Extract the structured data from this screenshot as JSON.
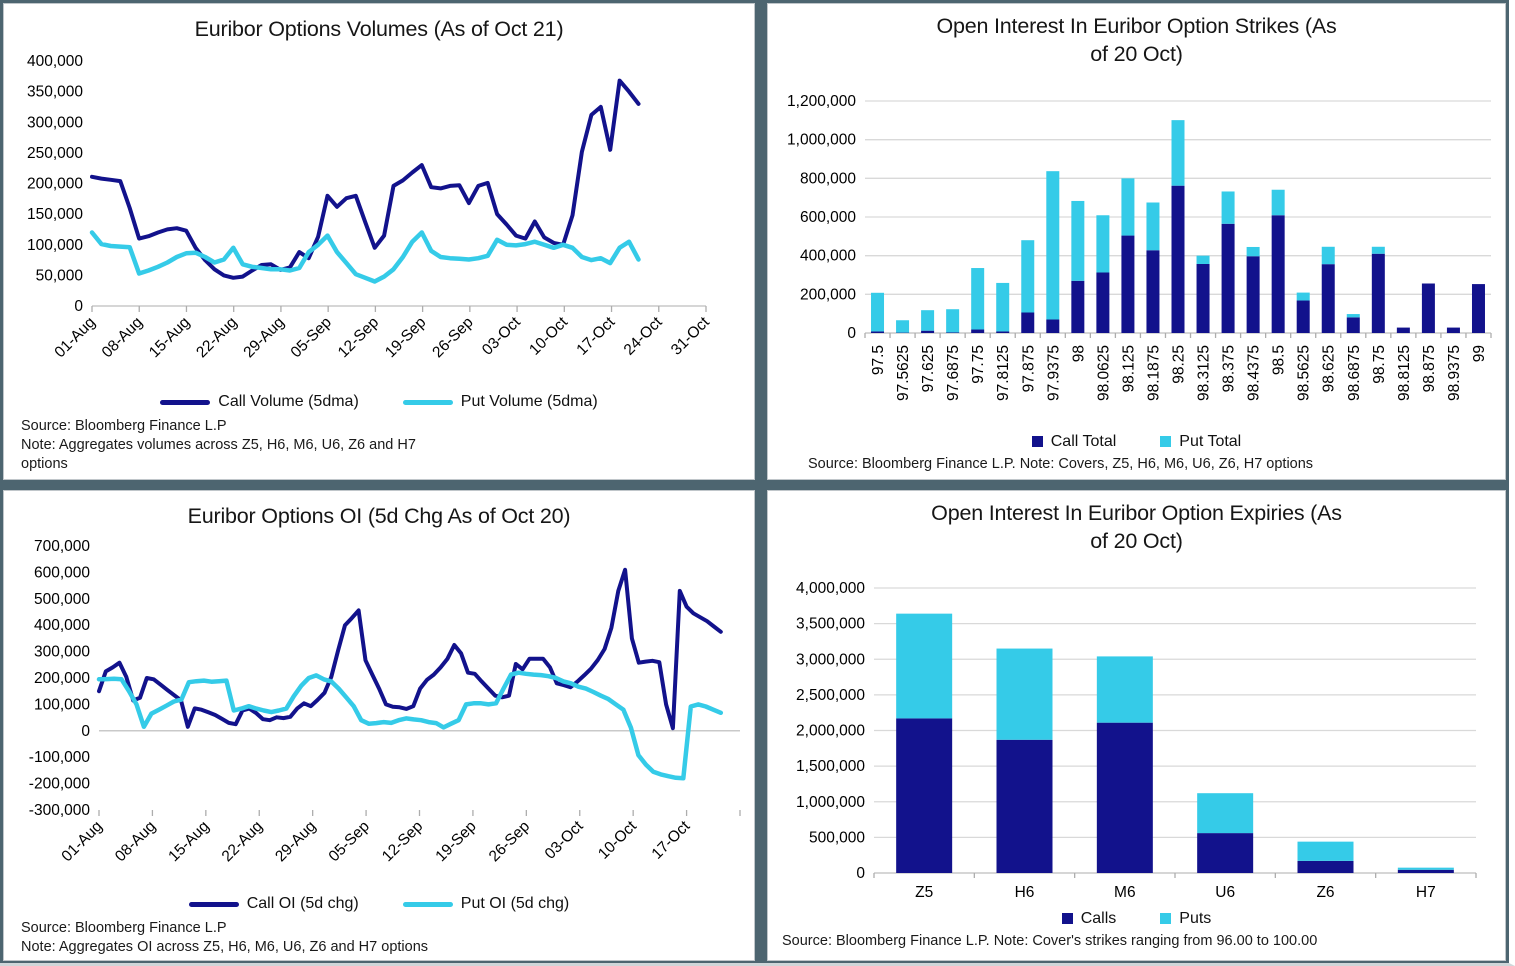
{
  "background_color": "#4D6570",
  "colors": {
    "navy": "#12128C",
    "cyan": "#35CBE8",
    "gridline": "#D9D9D9",
    "axis": "#C9C9C9",
    "tick": "#ADADAD"
  },
  "panels": [
    {
      "title": "Euribor Options Volumes (As of Oct 21)",
      "title_line1": "Euribor Options Volumes (As of Oct 21)",
      "title_line2": "",
      "legend": [
        {
          "label": "Call Volume (5dma)",
          "color": "#12128C",
          "marker": "line"
        },
        {
          "label": "Put Volume (5dma)",
          "color": "#35CBE8",
          "marker": "line"
        }
      ],
      "notes": [
        "Source: Bloomberg Finance L.P",
        "Note: Aggregates volumes across Z5, H6, M6, U6, Z6 and H7",
        "options"
      ]
    },
    {
      "title": "Open Interest In Euribor Option Strikes (As of 20 Oct)",
      "title_line1": "Open Interest In Euribor Option Strikes (As",
      "title_line2": "of 20 Oct)",
      "legend": [
        {
          "label": "Call Total",
          "color": "#12128C",
          "marker": "square"
        },
        {
          "label": "Put Total",
          "color": "#35CBE8",
          "marker": "square"
        }
      ],
      "notes": [
        "Source: Bloomberg Finance L.P. Note: Covers, Z5, H6, M6, U6, Z6, H7 options"
      ]
    },
    {
      "title": "Euribor Options OI (5d Chg As of Oct 20)",
      "title_line1": "Euribor Options OI (5d Chg As of Oct 20)",
      "title_line2": "",
      "legend": [
        {
          "label": "Call OI (5d chg)",
          "color": "#12128C",
          "marker": "line"
        },
        {
          "label": "Put OI (5d chg)",
          "color": "#35CBE8",
          "marker": "line"
        }
      ],
      "notes": [
        "Source: Bloomberg Finance L.P",
        "Note: Aggregates OI across Z5, H6, M6, U6, Z6 and H7 options"
      ]
    },
    {
      "title": "Open Interest In Euribor Option Expiries (As of 20 Oct)",
      "title_line1": "Open Interest In Euribor Option Expiries (As",
      "title_line2": "of 20 Oct)",
      "legend": [
        {
          "label": "Calls",
          "color": "#12128C",
          "marker": "square"
        },
        {
          "label": "Puts",
          "color": "#35CBE8",
          "marker": "square"
        }
      ],
      "notes": [
        "Source: Bloomberg Finance L.P. Note: Cover's strikes ranging from 96.00 to 100.00"
      ]
    }
  ],
  "chart_data": [
    {
      "type": "line",
      "title": "Euribor Options Volumes (As of Oct 21)",
      "x_labels": [
        "01-Aug",
        "08-Aug",
        "15-Aug",
        "22-Aug",
        "29-Aug",
        "05-Sep",
        "12-Sep",
        "19-Sep",
        "26-Sep",
        "03-Oct",
        "10-Oct",
        "17-Oct",
        "24-Oct",
        "31-Oct"
      ],
      "x_slots": 13,
      "data_fraction": 0.89,
      "ylim": [
        0,
        400000
      ],
      "ystep": 50000,
      "grid": false,
      "legend_position": "bottom",
      "series": [
        {
          "name": "Call Volume (5dma)",
          "color": "#12128C",
          "width": 4,
          "values": [
            211000,
            208000,
            206000,
            204000,
            160000,
            110000,
            114000,
            120000,
            125000,
            127000,
            123000,
            95000,
            75000,
            60000,
            50000,
            46000,
            48000,
            58000,
            67000,
            68000,
            59000,
            63000,
            88000,
            78000,
            113000,
            180000,
            162000,
            176000,
            180000,
            137000,
            95000,
            115000,
            196000,
            205000,
            218000,
            230000,
            194000,
            192000,
            196000,
            197000,
            168000,
            196000,
            201000,
            150000,
            133000,
            115000,
            110000,
            138000,
            112000,
            103000,
            100000,
            148000,
            252000,
            312000,
            325000,
            255000,
            368000,
            350000,
            330000
          ]
        },
        {
          "name": "Put Volume (5dma)",
          "color": "#35CBE8",
          "width": 4.5,
          "values": [
            120000,
            101000,
            98000,
            97000,
            96000,
            53000,
            58000,
            64000,
            71000,
            80000,
            86000,
            87000,
            80000,
            71000,
            76000,
            95000,
            68000,
            64000,
            62000,
            60000,
            60000,
            58000,
            62000,
            88000,
            100000,
            115000,
            88000,
            70000,
            52000,
            46000,
            40000,
            48000,
            60000,
            80000,
            105000,
            120000,
            90000,
            80000,
            78000,
            77000,
            76000,
            78000,
            82000,
            108000,
            100000,
            99000,
            101000,
            105000,
            100000,
            95000,
            100000,
            95000,
            80000,
            75000,
            78000,
            70000,
            95000,
            105000,
            76000
          ]
        }
      ]
    },
    {
      "type": "stacked_bar",
      "title": "Open Interest In Euribor Option Strikes (As of 20 Oct)",
      "categories": [
        "97.5",
        "97.5625",
        "97.625",
        "97.6875",
        "97.75",
        "97.8125",
        "97.875",
        "97.9375",
        "98",
        "98.0625",
        "98.125",
        "98.1875",
        "98.25",
        "98.3125",
        "98.375",
        "98.4375",
        "98.5",
        "98.5625",
        "98.625",
        "98.6875",
        "98.75",
        "98.8125",
        "98.875",
        "98.9375",
        "99"
      ],
      "ylim": [
        0,
        1200000
      ],
      "ystep": 200000,
      "grid": true,
      "x_label_rotation": -90,
      "legend_position": "bottom",
      "series": [
        {
          "name": "Call Total",
          "color": "#12128C",
          "values": [
            8000,
            2000,
            12000,
            3000,
            18000,
            8000,
            106000,
            70000,
            270000,
            313000,
            504000,
            428000,
            762000,
            357000,
            565000,
            397000,
            609000,
            168000,
            356000,
            81000,
            410000,
            28000,
            256000,
            28000,
            253000
          ]
        },
        {
          "name": "Put Total",
          "color": "#35CBE8",
          "values": [
            200000,
            64000,
            106000,
            120000,
            318000,
            251000,
            374000,
            767000,
            413000,
            296000,
            296000,
            247000,
            339000,
            43000,
            167000,
            48000,
            132000,
            41000,
            90000,
            17000,
            36000,
            0,
            0,
            0,
            0
          ]
        }
      ]
    },
    {
      "type": "line",
      "title": "Euribor Options OI (5d Chg As of Oct 20)",
      "x_labels": [
        "01-Aug",
        "08-Aug",
        "15-Aug",
        "22-Aug",
        "29-Aug",
        "05-Sep",
        "12-Sep",
        "19-Sep",
        "26-Sep",
        "03-Oct",
        "10-Oct",
        "17-Oct"
      ],
      "x_slots": 12,
      "data_fraction": 0.97,
      "ylim": [
        -300000,
        700000
      ],
      "ystep": 100000,
      "grid": false,
      "legend_position": "bottom",
      "series": [
        {
          "name": "Call OI (5d chg)",
          "color": "#12128C",
          "width": 4,
          "values": [
            150000,
            225000,
            240000,
            258000,
            204000,
            115000,
            125000,
            200000,
            195000,
            175000,
            155000,
            135000,
            115000,
            15000,
            85000,
            80000,
            70000,
            60000,
            45000,
            30000,
            25000,
            77000,
            84000,
            67000,
            44000,
            40000,
            51000,
            48000,
            53000,
            84000,
            104000,
            93000,
            117000,
            144000,
            204000,
            304000,
            400000,
            427000,
            456000,
            267000,
            213000,
            160000,
            100000,
            91000,
            89000,
            83000,
            93000,
            160000,
            193000,
            213000,
            240000,
            273000,
            325000,
            293000,
            220000,
            216000,
            187000,
            160000,
            133000,
            127000,
            133000,
            253000,
            233000,
            273000,
            273000,
            273000,
            240000,
            180000,
            173000,
            165000,
            186000,
            210000,
            235000,
            268000,
            310000,
            390000,
            530000,
            610000,
            350000,
            258000,
            262000,
            265000,
            260000,
            100000,
            10000,
            530000,
            470000,
            445000,
            430000,
            415000,
            395000,
            375000
          ]
        },
        {
          "name": "Put OI (5d chg)",
          "color": "#35CBE8",
          "width": 4.5,
          "values": [
            195000,
            196000,
            197000,
            195000,
            150000,
            100000,
            15000,
            65000,
            80000,
            95000,
            111000,
            118000,
            184000,
            188000,
            190000,
            186000,
            188000,
            190000,
            77000,
            84000,
            93000,
            84000,
            77000,
            71000,
            77000,
            84000,
            131000,
            171000,
            200000,
            210000,
            195000,
            187000,
            160000,
            127000,
            93000,
            40000,
            27000,
            29000,
            33000,
            30000,
            40000,
            47000,
            43000,
            40000,
            33000,
            29000,
            13000,
            27000,
            40000,
            100000,
            104000,
            104000,
            100000,
            104000,
            160000,
            213000,
            220000,
            216000,
            213000,
            211000,
            207000,
            200000,
            187000,
            180000,
            167000,
            160000,
            147000,
            133000,
            120000,
            100000,
            80000,
            12000,
            -92000,
            -128000,
            -155000,
            -165000,
            -172000,
            -178000,
            -180000,
            92000,
            100000,
            92000,
            80000,
            68000
          ]
        }
      ]
    },
    {
      "type": "stacked_bar",
      "title": "Open Interest In Euribor Option Expiries (As of 20 Oct)",
      "categories": [
        "Z5",
        "H6",
        "M6",
        "U6",
        "Z6",
        "H7"
      ],
      "ylim": [
        0,
        4000000
      ],
      "ystep": 500000,
      "grid": true,
      "x_label_rotation": 0,
      "legend_position": "bottom",
      "series": [
        {
          "name": "Calls",
          "color": "#12128C",
          "values": [
            2170000,
            1870000,
            2110000,
            560000,
            170000,
            45000
          ]
        },
        {
          "name": "Puts",
          "color": "#35CBE8",
          "values": [
            1470000,
            1280000,
            930000,
            560000,
            270000,
            30000
          ]
        }
      ]
    }
  ]
}
